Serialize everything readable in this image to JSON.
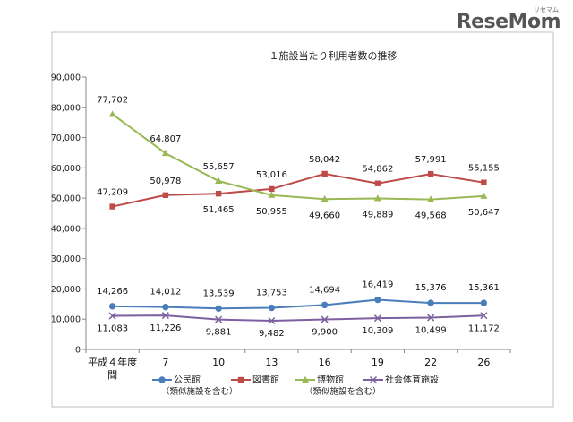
{
  "brand": {
    "logo_text": "ReseMom",
    "logo_subtext": "リセマム"
  },
  "chart_data": {
    "type": "line",
    "title": "１施設当たり利用者数の推移",
    "categories": [
      "平成４年度間",
      "7",
      "10",
      "13",
      "16",
      "19",
      "22",
      "26"
    ],
    "x_tick_labels": [
      [
        "平成４年度",
        "間"
      ],
      [
        "7"
      ],
      [
        "10"
      ],
      [
        "13"
      ],
      [
        "16"
      ],
      [
        "19"
      ],
      [
        "22"
      ],
      [
        "26"
      ]
    ],
    "ylim": [
      0,
      90000
    ],
    "y_ticks": [
      0,
      10000,
      20000,
      30000,
      40000,
      50000,
      60000,
      70000,
      80000,
      90000
    ],
    "y_tick_labels": [
      "0",
      "10,000",
      "20,000",
      "30,000",
      "40,000",
      "50,000",
      "60,000",
      "70,000",
      "80,000",
      "90,000"
    ],
    "grid": false,
    "legend_position": "bottom",
    "series": [
      {
        "name": "公民館",
        "name_note": "（類似施設を含む）",
        "color": "#4a7ebb",
        "marker": "circle",
        "values": [
          14266,
          14012,
          13539,
          13753,
          14694,
          16419,
          15376,
          15361
        ],
        "labels": [
          "14,266",
          "14,012",
          "13,539",
          "13,753",
          "14,694",
          "16,419",
          "15,376",
          "15,361"
        ]
      },
      {
        "name": "図書館",
        "name_note": "",
        "color": "#be4b48",
        "marker": "square",
        "values": [
          47209,
          50978,
          51465,
          53016,
          58042,
          54862,
          57991,
          55155
        ],
        "labels": [
          "47,209",
          "50,978",
          "51,465",
          "53,016",
          "58,042",
          "54,862",
          "57,991",
          "55,155"
        ]
      },
      {
        "name": "博物館",
        "name_note": "（類似施設を含む）",
        "color": "#98b954",
        "marker": "triangle",
        "values": [
          77702,
          64807,
          55657,
          50955,
          49660,
          49889,
          49568,
          50647
        ],
        "labels": [
          "77,702",
          "64,807",
          "55,657",
          "50,955",
          "49,660",
          "49,889",
          "49,568",
          "50,647"
        ]
      },
      {
        "name": "社会体育施設",
        "name_note": "",
        "color": "#7d60a0",
        "marker": "x",
        "values": [
          11083,
          11226,
          9881,
          9482,
          9900,
          10309,
          10499,
          11172
        ],
        "labels": [
          "11,083",
          "11,226",
          "9,881",
          "9,482",
          "9,900",
          "10,309",
          "10,499",
          "11,172"
        ]
      }
    ]
  }
}
